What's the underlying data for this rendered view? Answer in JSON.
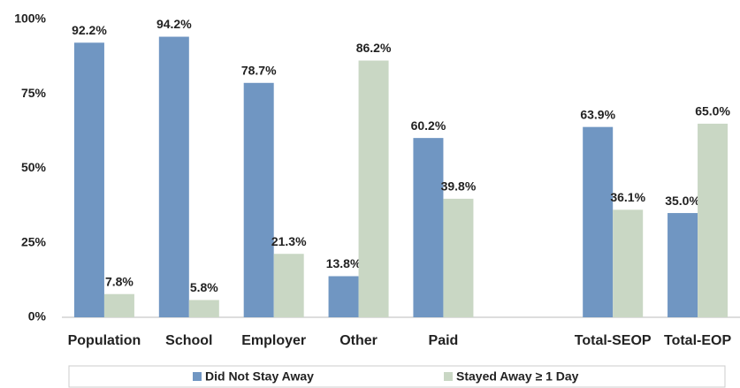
{
  "chart_data": {
    "type": "bar",
    "categories": [
      "Population",
      "School",
      "Employer",
      "Other",
      "Paid",
      null,
      "Total-SEOP",
      "Total-EOP"
    ],
    "series": [
      {
        "name": "Did Not Stay Away",
        "color": "#7096c2",
        "values": [
          92.2,
          94.2,
          78.7,
          13.8,
          60.2,
          null,
          63.9,
          35.0
        ],
        "value_labels": [
          "92.2%",
          "94.2%",
          "78.7%",
          "13.8%",
          "60.2%",
          null,
          "63.9%",
          "35.0%"
        ]
      },
      {
        "name": "Stayed Away ≥ 1 Day",
        "color": "#c9d7c4",
        "values": [
          7.8,
          5.8,
          21.3,
          86.2,
          39.8,
          null,
          36.1,
          65.0
        ],
        "value_labels": [
          "7.8%",
          "5.8%",
          "21.3%",
          "86.2%",
          "39.8%",
          null,
          "36.1%",
          "65.0%"
        ]
      }
    ],
    "ylim": [
      0,
      100
    ],
    "yticks": [
      {
        "value": 0,
        "label": "0%"
      },
      {
        "value": 25,
        "label": "25%"
      },
      {
        "value": 50,
        "label": "50%"
      },
      {
        "value": 75,
        "label": "75%"
      },
      {
        "value": 100,
        "label": "100%"
      }
    ],
    "grid": false,
    "legend": "bottom"
  }
}
